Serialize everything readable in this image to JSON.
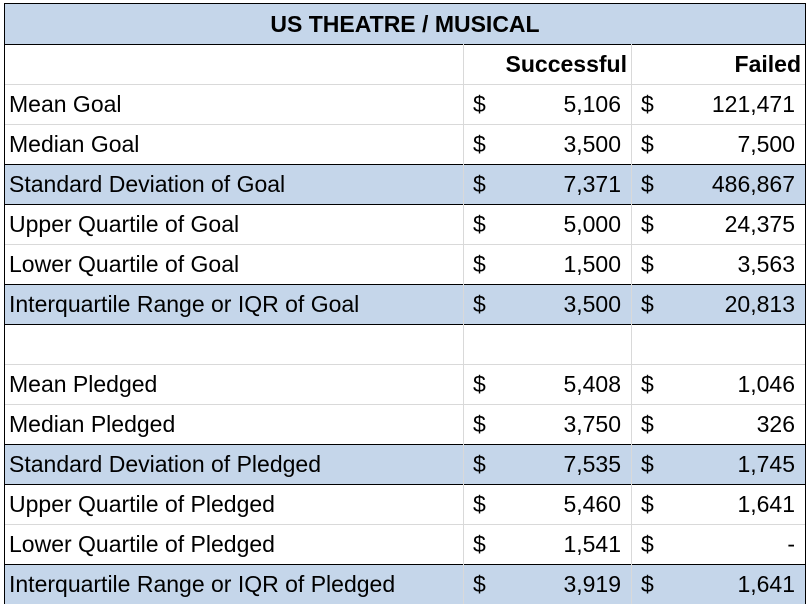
{
  "title": "US THEATRE / MUSICAL",
  "headers": {
    "successful": "Successful",
    "failed": "Failed"
  },
  "currency": "$",
  "rows": [
    {
      "label": "Mean Goal",
      "successful": "5,106",
      "failed": "121,471",
      "shaded": false
    },
    {
      "label": "Median Goal",
      "successful": "3,500",
      "failed": "7,500",
      "shaded": false
    },
    {
      "label": "Standard Deviation of Goal",
      "successful": "7,371",
      "failed": "486,867",
      "shaded": true
    },
    {
      "label": "Upper Quartile of Goal",
      "successful": "5,000",
      "failed": "24,375",
      "shaded": false
    },
    {
      "label": "Lower Quartile of Goal",
      "successful": "1,500",
      "failed": "3,563",
      "shaded": false
    },
    {
      "label": "Interquartile Range or IQR of Goal",
      "successful": "3,500",
      "failed": "20,813",
      "shaded": true
    },
    {
      "label": "",
      "successful": "",
      "failed": "",
      "shaded": false,
      "blank": true
    },
    {
      "label": "Mean Pledged",
      "successful": "5,408",
      "failed": "1,046",
      "shaded": false
    },
    {
      "label": "Median Pledged",
      "successful": "3,750",
      "failed": "326",
      "shaded": false
    },
    {
      "label": "Standard Deviation of Pledged",
      "successful": "7,535",
      "failed": "1,745",
      "shaded": true
    },
    {
      "label": "Upper Quartile of Pledged",
      "successful": "5,460",
      "failed": "1,641",
      "shaded": false
    },
    {
      "label": "Lower Quartile of Pledged",
      "successful": "1,541",
      "failed": "-",
      "shaded": false
    },
    {
      "label": "Interquartile Range or IQR of Pledged",
      "successful": "3,919",
      "failed": "1,641",
      "shaded": true
    }
  ]
}
